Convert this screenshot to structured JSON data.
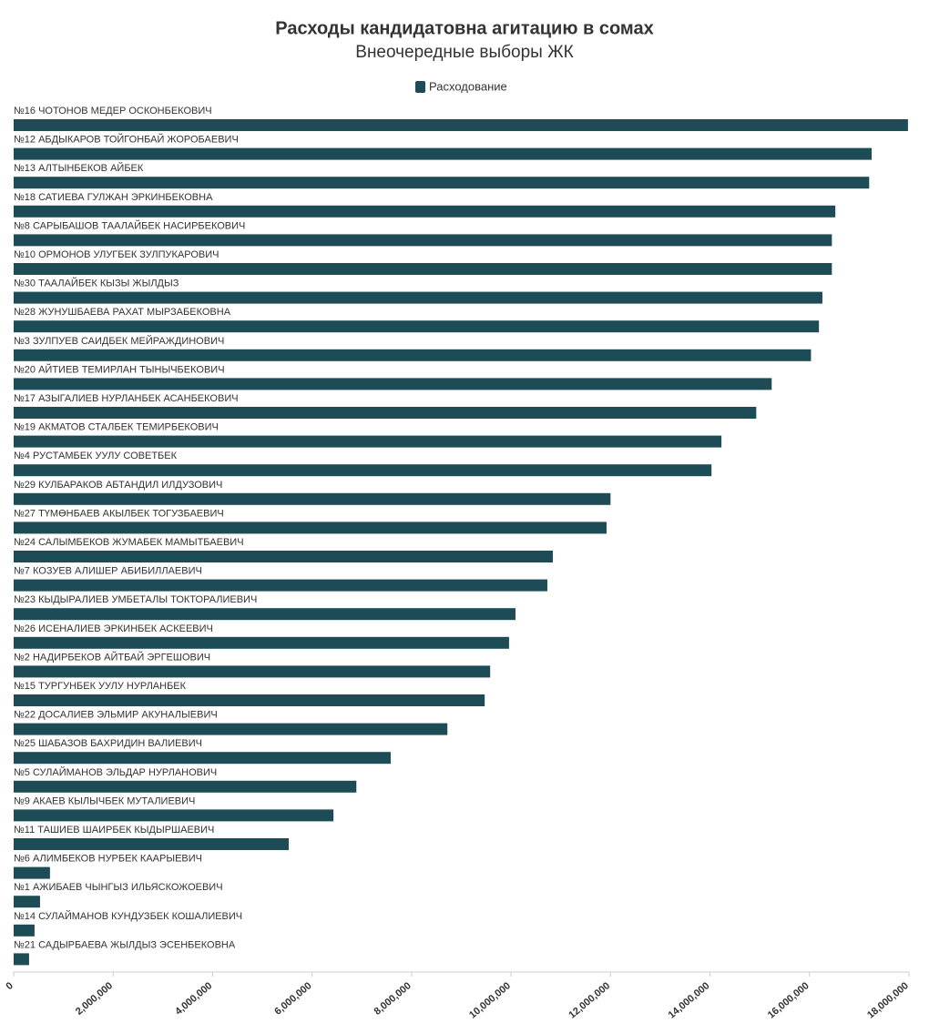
{
  "chart_data": {
    "type": "hbar",
    "title": "Расходы кандидатовна агитацию в сомах",
    "subtitle": "Внеочередные выборы ЖК",
    "legend_position": "top",
    "series": [
      {
        "name": "Расходование",
        "color": "#1d4c57",
        "values": [
          17980000,
          17250000,
          17200000,
          16520000,
          16450000,
          16450000,
          16260000,
          16190000,
          16030000,
          15240000,
          14930000,
          14230000,
          14030000,
          12000000,
          11920000,
          10840000,
          10730000,
          10090000,
          9960000,
          9580000,
          9470000,
          8720000,
          7580000,
          6890000,
          6430000,
          5530000,
          730000,
          530000,
          420000,
          310000
        ]
      }
    ],
    "categories": [
      "№16 ЧОТОНОВ МЕДЕР ОСКОНБЕКОВИЧ",
      "№12 АБДЫКАРОВ ТОЙГОНБАЙ ЖОРОБАЕВИЧ",
      "№13 АЛТЫНБЕКОВ АЙБЕК",
      "№18 САТИЕВА ГУЛЖАН ЭРКИНБЕКОВНА",
      "№8 САРЫБАШОВ ТААЛАЙБЕК НАСИРБЕКОВИЧ",
      "№10 ОРМОНОВ УЛУГБЕК ЗУЛПУКАРОВИЧ",
      "№30 ТААЛАЙБЕК КЫЗЫ ЖЫЛДЫЗ",
      "№28 ЖУНУШБАЕВА РАХАТ МЫРЗАБЕКОВНА",
      "№3 ЗУЛПУЕВ САИДБЕК МЕЙРАЖДИНОВИЧ",
      "№20 АЙТИЕВ ТЕМИРЛАН ТЫНЫЧБЕКОВИЧ",
      "№17 АЗЫГАЛИЕВ НУРЛАНБЕК АСАНБЕКОВИЧ",
      "№19 АКМАТОВ СТАЛБЕК ТЕМИРБЕКОВИЧ",
      "№4 РУСТАМБЕК УУЛУ СОВЕТБЕК",
      "№29 КУЛБАРАКОВ АБТАНДИЛ ИЛДУЗОВИЧ",
      "№27 ТҮМӨНБАЕВ АКЫЛБЕК ТОГУЗБАЕВИЧ",
      "№24 САЛЫМБЕКОВ ЖУМАБЕК МАМЫТБАЕВИЧ",
      "№7 КОЗУЕВ АЛИШЕР АБИБИЛЛАЕВИЧ",
      "№23 КЫДЫРАЛИЕВ УМБЕТАЛЫ ТОКТОРАЛИЕВИЧ",
      "№26 ИСЕНАЛИЕВ ЭРКИНБЕК АСКЕЕВИЧ",
      "№2 НАДИРБЕКОВ АЙТБАЙ ЭРГЕШОВИЧ",
      "№15 ТУРГУНБЕК УУЛУ НУРЛАНБЕК",
      "№22 ДОСАЛИЕВ ЭЛЬМИР АКУНАЛЫЕВИЧ",
      "№25 ШАБАЗОВ БАХРИДИН ВАЛИЕВИЧ",
      "№5 СУЛАЙМАНОВ ЭЛЬДАР НУРЛАНОВИЧ",
      "№9 АКАЕВ КЫЛЫЧБЕК МУТАЛИЕВИЧ",
      "№11 ТАШИЕВ ШАИРБЕК КЫДЫРШАЕВИЧ",
      "№6 АЛИМБЕКОВ НУРБЕК КААРЫЕВИЧ",
      "№1 АЖИБАЕВ ЧЫНГЫЗ ИЛЬЯСКОЖОЕВИЧ",
      "№14 СУЛАЙМАНОВ КУНДУЗБЕК КОШАЛИЕВИЧ",
      "№21 САДЫРБАЕВА ЖЫЛДЫЗ ЭСЕНБЕКОВНА"
    ],
    "xlim": [
      0,
      18000000
    ],
    "xticks": [
      0,
      {
        "value": 2000000,
        "label": "2,000,000"
      },
      {
        "value": 4000000,
        "label": "4,000,000"
      },
      {
        "value": 6000000,
        "label": "6,000,000"
      },
      {
        "value": 8000000,
        "label": "8,000,000"
      },
      {
        "value": 10000000,
        "label": "10,000,000"
      },
      {
        "value": 12000000,
        "label": "12,000,000"
      },
      {
        "value": 14000000,
        "label": "14,000,000"
      },
      {
        "value": 16000000,
        "label": "16,000,000"
      },
      {
        "value": 18000000,
        "label": "18,000,000"
      }
    ]
  }
}
